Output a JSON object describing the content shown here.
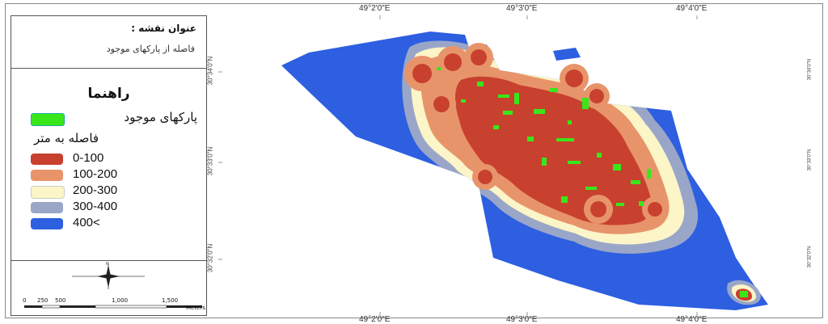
{
  "map": {
    "title_label": "عنوان نقشه :",
    "title_value": "فاصله از پارکهای موجود"
  },
  "legend": {
    "heading": "راهنما",
    "parks_label": "پارکهای موجود",
    "parks_color": "#39e61a",
    "distance_heading": "فاصله به متر",
    "classes": [
      {
        "label": "0-100",
        "color": "#c8412e"
      },
      {
        "label": "100-200",
        "color": "#e8946a"
      },
      {
        "label": "200-300",
        "color": "#fbf5c8"
      },
      {
        "label": "300-400",
        "color": "#9aa6c8"
      },
      {
        "label": "400<",
        "color": "#2d5fe0"
      }
    ]
  },
  "scale_bar": {
    "ticks": [
      "0",
      "250",
      "500",
      "1,000",
      "1,500"
    ],
    "unit": "Meters"
  },
  "graticule": {
    "top": [
      "49°2'0\"E",
      "49°3'0\"E",
      "49°4'0\"E"
    ],
    "bottom": [
      "49°2'0\"E",
      "49°3'0\"E",
      "49°4'0\"E"
    ],
    "left": [
      "30°34'0\"N",
      "30°33'0\"N",
      "30°32'0\"N"
    ],
    "right": [
      "30°34'0\"N",
      "30°33'0\"N",
      "30°32'0\"N"
    ]
  }
}
